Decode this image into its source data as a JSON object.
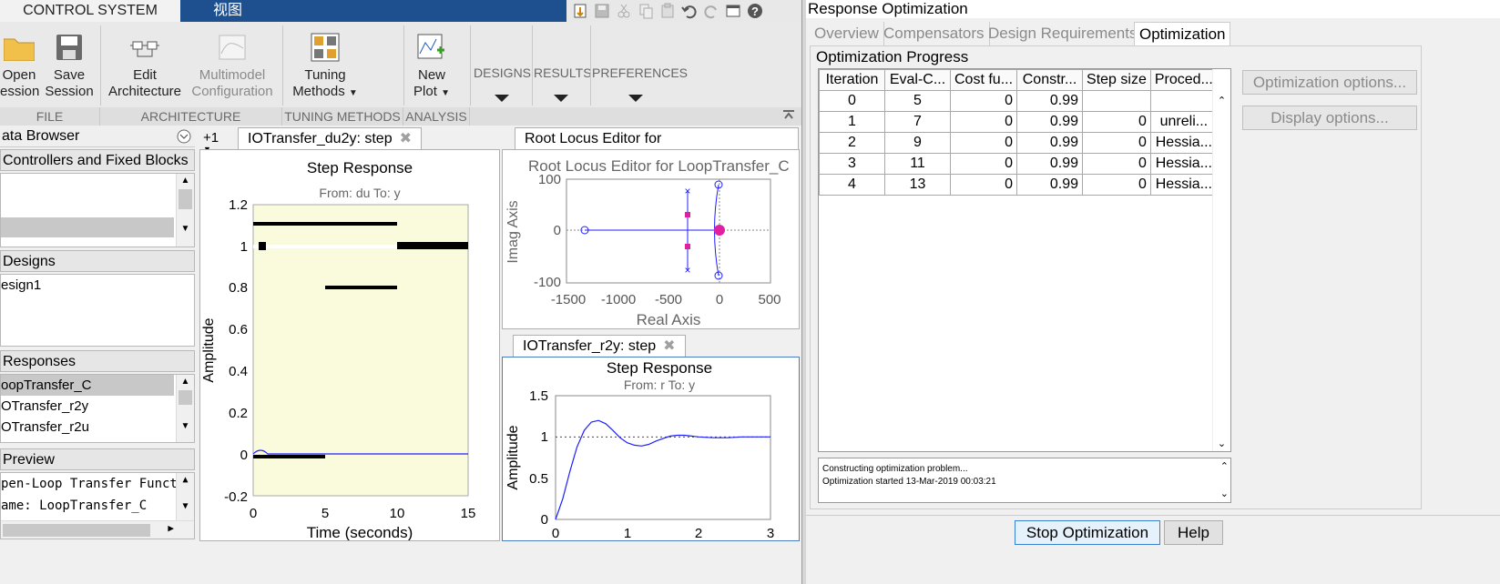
{
  "tabs": {
    "control_system": "CONTROL SYSTEM",
    "view": "视图"
  },
  "ribbon": {
    "open_session_line1": "Open",
    "open_session_line2": "ession",
    "save_session_line1": "Save",
    "save_session_line2": "Session",
    "edit_architecture_line1": "Edit",
    "edit_architecture_line2": "Architecture",
    "multimodel_line1": "Multimodel",
    "multimodel_line2": "Configuration",
    "tuning_methods_line1": "Tuning",
    "tuning_methods_line2": "Methods",
    "new_plot_line1": "New",
    "new_plot_line2": "Plot",
    "designs": "DESIGNS",
    "results": "RESULTS",
    "preferences": "PREFERENCES",
    "sections": {
      "file": "FILE",
      "architecture": "ARCHITECTURE",
      "tuning_methods": "TUNING METHODS",
      "analysis": "ANALYSIS"
    }
  },
  "data_browser": {
    "title": "ata Browser",
    "controllers_header": "Controllers and Fixed Blocks",
    "designs_header": "Designs",
    "designs_items": [
      "esign1"
    ],
    "responses_header": "Responses",
    "responses_items": [
      "oopTransfer_C",
      "OTransfer_r2y",
      "OTransfer_r2u"
    ],
    "preview_header": "Preview",
    "preview_lines": [
      "pen-Loop Transfer Function",
      "ame: LoopTransfer_C"
    ]
  },
  "doc_tabs": {
    "plus_one": "+1",
    "step_du2y": "IOTransfer_du2y: step",
    "root_locus": "Root Locus Editor for LoopTransfer_C",
    "step_r2y": "IOTransfer_r2y: step"
  },
  "plot_du2y": {
    "title": "Step Response",
    "subtitle": "From: du  To: y",
    "ylabel": "Amplitude",
    "xlabel": "Time (seconds)",
    "yticks": [
      "1.2",
      "1",
      "0.8",
      "0.6",
      "0.4",
      "0.2",
      "0",
      "-0.2"
    ],
    "xticks": [
      "0",
      "5",
      "10",
      "15"
    ]
  },
  "plot_rootlocus": {
    "title": "Root Locus Editor for LoopTransfer_C",
    "ylabel": "Imag Axis",
    "xlabel": "Real Axis",
    "yticks": [
      "100",
      "0",
      "-100"
    ],
    "xticks": [
      "-1500",
      "-1000",
      "-500",
      "0",
      "500"
    ]
  },
  "plot_r2y": {
    "title": "Step Response",
    "subtitle": "From: r  To: y",
    "ylabel": "Amplitude",
    "yticks": [
      "1.5",
      "1",
      "0.5",
      "0"
    ],
    "xticks": [
      "0",
      "1",
      "2",
      "3"
    ]
  },
  "chart_data": [
    {
      "type": "line",
      "title": "Step Response",
      "subtitle": "From: r  To: y",
      "ylabel": "Amplitude",
      "xlim": [
        0,
        3
      ],
      "ylim": [
        0,
        1.5
      ],
      "reference_line": 1,
      "series": [
        {
          "color": "#1f1fff",
          "x": [
            0,
            0.1,
            0.2,
            0.3,
            0.4,
            0.5,
            0.6,
            0.7,
            0.8,
            0.9,
            1.0,
            1.1,
            1.2,
            1.3,
            1.4,
            1.5,
            1.6,
            1.7,
            1.8,
            1.9,
            2.0,
            2.2,
            2.4,
            2.6,
            2.8,
            3.0
          ],
          "y": [
            0,
            0.25,
            0.58,
            0.88,
            1.08,
            1.18,
            1.2,
            1.16,
            1.08,
            0.99,
            0.93,
            0.9,
            0.89,
            0.91,
            0.95,
            0.98,
            1.01,
            1.02,
            1.02,
            1.01,
            1.0,
            0.99,
            0.99,
            1.0,
            1.0,
            1.0
          ]
        }
      ]
    }
  ],
  "response_optimization": {
    "window_title": "Response Optimization",
    "tabs": [
      "Overview",
      "Compensators",
      "Design Requirements",
      "Optimization"
    ],
    "progress_label": "Optimization Progress",
    "columns": [
      "Iteration",
      "Eval-C...",
      "Cost fu...",
      "Constr...",
      "Step size",
      "Proced..."
    ],
    "rows": [
      [
        "0",
        "5",
        "0",
        "0.99",
        "",
        ""
      ],
      [
        "1",
        "7",
        "0",
        "0.99",
        "0",
        "unreli..."
      ],
      [
        "2",
        "9",
        "0",
        "0.99",
        "0",
        "Hessia..."
      ],
      [
        "3",
        "11",
        "0",
        "0.99",
        "0",
        "Hessia..."
      ],
      [
        "4",
        "13",
        "0",
        "0.99",
        "0",
        "Hessia..."
      ]
    ],
    "optimization_options": "Optimization options...",
    "display_options": "Display options...",
    "log_lines": [
      "Constructing optimization problem...",
      "Optimization started 13-Mar-2019 00:03:21"
    ],
    "stop_button": "Stop Optimization",
    "help_button": "Help"
  }
}
